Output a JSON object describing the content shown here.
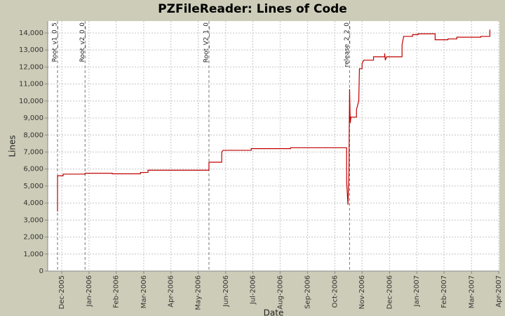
{
  "chart_data": {
    "type": "line",
    "title": "PZFileReader: Lines of Code",
    "x_label": "Date",
    "y_label": "Lines",
    "color": "#c00000",
    "grid": true,
    "xlim": [
      2005.874,
      2007.252
    ],
    "ylim": [
      0,
      14700
    ],
    "xticks": [
      {
        "value": 2005.917,
        "label": "Dec-2005"
      },
      {
        "value": 2006.0,
        "label": "Jan-2006"
      },
      {
        "value": 2006.083,
        "label": "Feb-2006"
      },
      {
        "value": 2006.167,
        "label": "Mar-2006"
      },
      {
        "value": 2006.25,
        "label": "Apr-2006"
      },
      {
        "value": 2006.333,
        "label": "May-2006"
      },
      {
        "value": 2006.417,
        "label": "Jun-2006"
      },
      {
        "value": 2006.5,
        "label": "Jul-2006"
      },
      {
        "value": 2006.583,
        "label": "Aug-2006"
      },
      {
        "value": 2006.667,
        "label": "Sep-2006"
      },
      {
        "value": 2006.75,
        "label": "Oct-2006"
      },
      {
        "value": 2006.833,
        "label": "Nov-2006"
      },
      {
        "value": 2006.917,
        "label": "Dec-2006"
      },
      {
        "value": 2007.0,
        "label": "Jan-2007"
      },
      {
        "value": 2007.083,
        "label": "Feb-2007"
      },
      {
        "value": 2007.167,
        "label": "Mar-2007"
      },
      {
        "value": 2007.25,
        "label": "Apr-2007"
      }
    ],
    "yticks": [
      0,
      {
        "value": 1000,
        "label": "1,000"
      },
      {
        "value": 2000,
        "label": "2,000"
      },
      {
        "value": 3000,
        "label": "3,000"
      },
      {
        "value": 4000,
        "label": "4,000"
      },
      {
        "value": 5000,
        "label": "5,000"
      },
      {
        "value": 6000,
        "label": "6,000"
      },
      {
        "value": 7000,
        "label": "7,000"
      },
      {
        "value": 8000,
        "label": "8,000"
      },
      {
        "value": 9000,
        "label": "9,000"
      },
      {
        "value": 10000,
        "label": "10,000"
      },
      {
        "value": 11000,
        "label": "11,000"
      },
      {
        "value": 12000,
        "label": "12,000"
      },
      {
        "value": 13000,
        "label": "13,000"
      },
      {
        "value": 14000,
        "label": "14,000"
      }
    ],
    "markers": [
      {
        "label": "Root_v1_0_5",
        "x": 2005.904
      },
      {
        "label": "Root_v2_0_0",
        "x": 2005.988
      },
      {
        "label": "Root_V2_1_0",
        "x": 2006.366
      },
      {
        "label": "release_2_2_0",
        "x": 2006.795
      }
    ],
    "x": [
      2005.904,
      2005.904,
      2005.921,
      2005.921,
      2005.988,
      2005.988,
      2006.071,
      2006.071,
      2006.157,
      2006.157,
      2006.18,
      2006.18,
      2006.366,
      2006.366,
      2006.405,
      2006.405,
      2006.409,
      2006.495,
      2006.495,
      2006.615,
      2006.615,
      2006.786,
      2006.786,
      2006.79,
      2006.793,
      2006.795,
      2006.797,
      2006.799,
      2006.816,
      2006.816,
      2006.823,
      2006.825,
      2006.833,
      2006.833,
      2006.838,
      2006.868,
      2006.868,
      2006.902,
      2006.902,
      2006.904,
      2006.908,
      2006.955,
      2006.955,
      2006.96,
      2006.987,
      2006.987,
      2007.004,
      2007.004,
      2007.056,
      2007.056,
      2007.095,
      2007.095,
      2007.122,
      2007.122,
      2007.195,
      2007.195,
      2007.223,
      2007.223
    ],
    "values": [
      3500,
      5600,
      5600,
      5700,
      5700,
      5750,
      5750,
      5720,
      5720,
      5800,
      5800,
      5930,
      5930,
      6400,
      6400,
      7000,
      7100,
      7100,
      7200,
      7200,
      7250,
      7250,
      5250,
      3900,
      5800,
      10700,
      8700,
      9050,
      9050,
      9500,
      10000,
      11900,
      11900,
      12200,
      12400,
      12400,
      12600,
      12600,
      12800,
      12400,
      12600,
      12600,
      13300,
      13800,
      13800,
      13900,
      13900,
      13950,
      13950,
      13600,
      13600,
      13650,
      13650,
      13750,
      13750,
      13800,
      13800,
      14200
    ]
  }
}
